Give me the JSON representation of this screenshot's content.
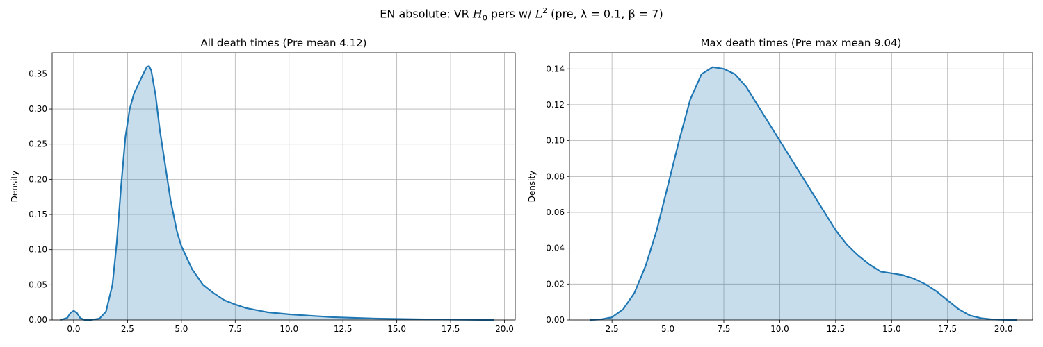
{
  "figure": {
    "suptitle": {
      "prefix": "EN absolute: VR ",
      "h_sym": "H",
      "h_sub": "0",
      "mid1": " pers w/ ",
      "l_sym": "L",
      "l_sup": "2",
      "mid2": " (pre, ",
      "lambda": "λ = 0.1",
      "mid3": ", ",
      "beta": "β = 7",
      "suffix": ")"
    }
  },
  "chart_data": [
    {
      "type": "area",
      "title": "All death times (Pre mean 4.12)",
      "xlabel": "",
      "ylabel": "Density",
      "xlim": [
        -1.0,
        20.5
      ],
      "ylim": [
        0,
        0.38
      ],
      "xticks": [
        0.0,
        2.5,
        5.0,
        7.5,
        10.0,
        12.5,
        15.0,
        17.5,
        20.0
      ],
      "xtick_labels": [
        "0.0",
        "2.5",
        "5.0",
        "7.5",
        "10.0",
        "12.5",
        "15.0",
        "17.5",
        "20.0"
      ],
      "yticks": [
        0.0,
        0.05,
        0.1,
        0.15,
        0.2,
        0.25,
        0.3,
        0.35
      ],
      "ytick_labels": [
        "0.00",
        "0.05",
        "0.10",
        "0.15",
        "0.20",
        "0.25",
        "0.30",
        "0.35"
      ],
      "grid": true,
      "color": "#1f77b4",
      "x": [
        -0.6,
        -0.3,
        -0.15,
        0.0,
        0.15,
        0.3,
        0.5,
        0.8,
        1.2,
        1.5,
        1.8,
        2.0,
        2.2,
        2.4,
        2.6,
        2.8,
        3.0,
        3.2,
        3.4,
        3.5,
        3.6,
        3.8,
        4.0,
        4.2,
        4.5,
        4.8,
        5.0,
        5.5,
        6.0,
        6.5,
        7.0,
        7.5,
        8.0,
        9.0,
        10.0,
        11.0,
        12.0,
        13.0,
        14.0,
        15.0,
        16.0,
        17.0,
        18.0,
        19.0,
        19.5
      ],
      "y": [
        0.0,
        0.003,
        0.01,
        0.013,
        0.01,
        0.003,
        0.0,
        0.0,
        0.002,
        0.012,
        0.05,
        0.11,
        0.19,
        0.26,
        0.3,
        0.322,
        0.335,
        0.348,
        0.36,
        0.361,
        0.355,
        0.32,
        0.27,
        0.23,
        0.17,
        0.125,
        0.105,
        0.072,
        0.05,
        0.038,
        0.028,
        0.022,
        0.017,
        0.011,
        0.008,
        0.006,
        0.004,
        0.003,
        0.002,
        0.0015,
        0.001,
        0.0007,
        0.0003,
        0.0001,
        0.0
      ]
    },
    {
      "type": "area",
      "title": "Max death times (Pre max mean 9.04)",
      "xlabel": "",
      "ylabel": "Density",
      "xlim": [
        0.6,
        21.3
      ],
      "ylim": [
        0,
        0.149
      ],
      "xticks": [
        2.5,
        5.0,
        7.5,
        10.0,
        12.5,
        15.0,
        17.5,
        20.0
      ],
      "xtick_labels": [
        "2.5",
        "5.0",
        "7.5",
        "10.0",
        "12.5",
        "15.0",
        "17.5",
        "20.0"
      ],
      "yticks": [
        0.0,
        0.02,
        0.04,
        0.06,
        0.08,
        0.1,
        0.12,
        0.14
      ],
      "ytick_labels": [
        "0.00",
        "0.02",
        "0.04",
        "0.06",
        "0.08",
        "0.10",
        "0.12",
        "0.14"
      ],
      "grid": true,
      "color": "#1f77b4",
      "x": [
        1.5,
        2.0,
        2.5,
        3.0,
        3.5,
        4.0,
        4.5,
        5.0,
        5.5,
        6.0,
        6.5,
        7.0,
        7.5,
        8.0,
        8.5,
        9.0,
        9.5,
        10.0,
        10.5,
        11.0,
        11.5,
        12.0,
        12.5,
        13.0,
        13.5,
        14.0,
        14.5,
        15.0,
        15.5,
        16.0,
        16.5,
        17.0,
        17.5,
        18.0,
        18.5,
        19.0,
        19.5,
        20.0,
        20.6
      ],
      "y": [
        0.0,
        0.0003,
        0.0015,
        0.006,
        0.015,
        0.03,
        0.05,
        0.075,
        0.1,
        0.123,
        0.137,
        0.141,
        0.14,
        0.137,
        0.13,
        0.12,
        0.11,
        0.1,
        0.09,
        0.08,
        0.07,
        0.06,
        0.05,
        0.042,
        0.036,
        0.031,
        0.027,
        0.026,
        0.025,
        0.023,
        0.02,
        0.016,
        0.011,
        0.006,
        0.0025,
        0.001,
        0.0003,
        0.0001,
        0.0
      ]
    }
  ]
}
